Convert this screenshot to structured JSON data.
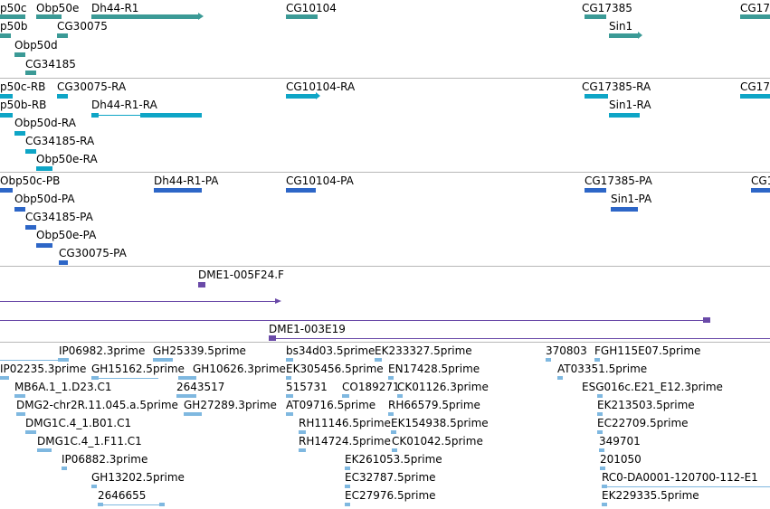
{
  "tracks": {
    "genes": {
      "labels": [
        "p50c",
        "Obp50e",
        "Dh44-R1",
        "CG10104",
        "CG17385",
        "CG17",
        "p50b",
        "CG30075",
        "Sin1",
        "Obp50d",
        "CG34185"
      ],
      "color": "#3b9a96"
    },
    "transcripts": {
      "labels": [
        "p50c-RB",
        "CG30075-RA",
        "CG10104-RA",
        "CG17385-RA",
        "CG17",
        "p50b-RB",
        "Dh44-R1-RA",
        "Sin1-RA",
        "Obp50d-RA",
        "CG34185-RA",
        "Obp50e-RA"
      ],
      "color": "#0ea5c6"
    },
    "proteins": {
      "labels": [
        "Obp50c-PB",
        "Dh44-R1-PA",
        "CG10104-PA",
        "CG17385-PA",
        "CG1",
        "Obp50d-PA",
        "Sin1-PA",
        "CG34185-PA",
        "Obp50e-PA",
        "CG30075-PA"
      ],
      "color": "#2d66c7"
    },
    "clones": {
      "labels": [
        "DME1-005F24.F",
        "DME1-003E19"
      ],
      "color": "#6a4aa8"
    },
    "ests": {
      "labels": [
        "IP06982.3prime",
        "GH25339.5prime",
        "bs34d03.5prime",
        "EK233327.5prime",
        "370803",
        "FGH115E07.5prime",
        "IP02235.3prime",
        "GH15162.5prime",
        "GH10626.3prime",
        "EK305456.5prime",
        "EN17428.5prime",
        "AT03351.5prime",
        "MB6A.1_1.D23.C1",
        "2643517",
        "515731",
        "CO189271",
        "CK01126.3prime",
        "ESG016c.E21_E12.3prime",
        "DMG2-chr2R.11.045.a.5prime",
        "GH27289.3prime",
        "AT09716.5prime",
        "RH66579.5prime",
        "EK213503.5prime",
        "DMG1C.4_1.B01.C1",
        "RH11146.5prime",
        "EK154938.5prime",
        "EC22709.5prime",
        "DMG1C.4_1.F11.C1",
        "RH14724.5prime",
        "CK01042.5prime",
        "349701",
        "IP06882.3prime",
        "EK261053.5prime",
        "201050",
        "GH13202.5prime",
        "EC32787.5prime",
        "RC0-DA0001-120700-112-E1",
        "2646655",
        "EC27976.5prime",
        "EK229335.5prime"
      ],
      "color": "#7fb8e0"
    }
  }
}
